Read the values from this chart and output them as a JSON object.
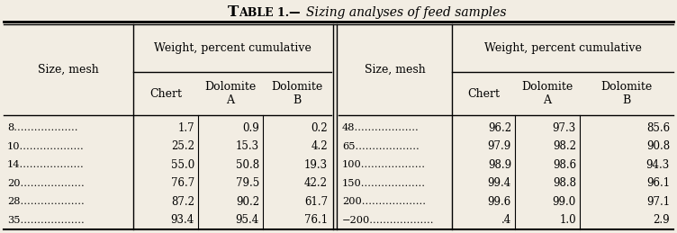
{
  "title_prefix": "T",
  "title_rest": "able 1.—",
  "title_italic": "Sizing analyses of feed samples",
  "left_rows": [
    [
      "8",
      "1.7",
      "0.9",
      "0.2"
    ],
    [
      "10",
      "25.2",
      "15.3",
      "4.2"
    ],
    [
      "14",
      "55.0",
      "50.8",
      "19.3"
    ],
    [
      "20",
      "76.7",
      "79.5",
      "42.2"
    ],
    [
      "28",
      "87.2",
      "90.2",
      "61.7"
    ],
    [
      "35",
      "93.4",
      "95.4",
      "76.1"
    ]
  ],
  "right_rows": [
    [
      "48",
      "96.2",
      "97.3",
      "85.6"
    ],
    [
      "65",
      "97.9",
      "98.2",
      "90.8"
    ],
    [
      "100",
      "98.9",
      "98.6",
      "94.3"
    ],
    [
      "150",
      "99.4",
      "98.8",
      "96.1"
    ],
    [
      "200",
      "99.6",
      "99.0",
      "97.1"
    ],
    [
      "−200",
      ".4",
      "1.0",
      "2.9"
    ]
  ],
  "col_headers": [
    "Chert",
    "Dolomite\nA",
    "Dolomite\nB"
  ],
  "group_header": "Weight, percent cumulative",
  "row_header": "Size, mesh",
  "bg_color": "#f2ede3"
}
